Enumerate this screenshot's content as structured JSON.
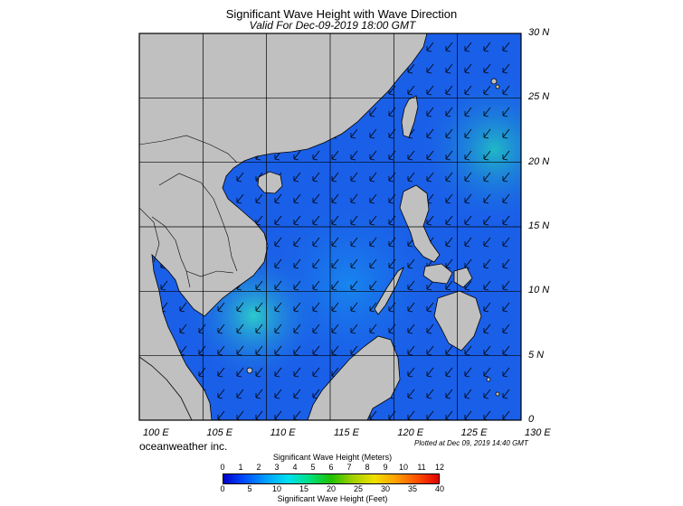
{
  "title": "Significant Wave Height with Wave Direction",
  "subtitle": "Valid For Dec-09-2019 18:00 GMT",
  "map": {
    "region": "South China Sea",
    "lon_range": [
      100,
      130
    ],
    "lat_range": [
      0,
      30
    ],
    "grid": true,
    "ocean_color": "#1a5fe8",
    "land_color": "#c0c0c0",
    "arrow_direction": "southwest"
  },
  "lat_labels": [
    "30 N",
    "25 N",
    "20 N",
    "15 N",
    "10 N",
    "5 N",
    "0"
  ],
  "lon_labels": [
    "100 E",
    "105 E",
    "110 E",
    "115 E",
    "120 E",
    "125 E",
    "130 E"
  ],
  "brand": "oceanweather inc.",
  "plotted": "Plotted at Dec 09, 2019 14:40 GMT",
  "colorbar": {
    "title_top": "Significant Wave Height (Meters)",
    "title_bottom": "Significant Wave Height (Feet)",
    "meters": [
      "0",
      "1",
      "2",
      "3",
      "4",
      "5",
      "6",
      "7",
      "8",
      "9",
      "10",
      "11",
      "12"
    ],
    "feet": [
      "0",
      "5",
      "10",
      "15",
      "20",
      "25",
      "30",
      "35",
      "40"
    ],
    "colors": [
      "#0000c8",
      "#0050ff",
      "#00a0ff",
      "#00e0f0",
      "#00e080",
      "#20c000",
      "#a0d000",
      "#f0e000",
      "#ffa000",
      "#ff5000",
      "#e00000"
    ]
  }
}
